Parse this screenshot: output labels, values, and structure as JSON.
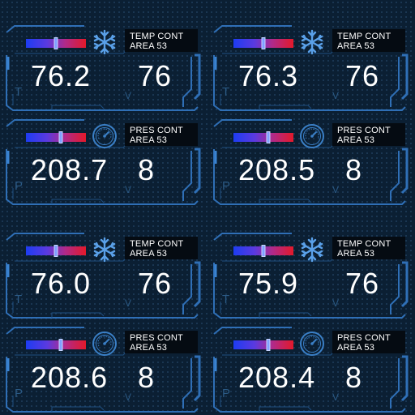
{
  "colors": {
    "background": "#0b1f33",
    "frame": "#2f6fb6",
    "bar_start": "#1d3cf2",
    "bar_end": "#e3192a",
    "label_bg": "#050b12",
    "text": "#ffffff",
    "symbol": "#2b5a85"
  },
  "groups": [
    {
      "panels": [
        {
          "icon": "snowflake-icon",
          "label_line1": "TEMP CONT",
          "label_line2": "AREA 53",
          "value": "76.2",
          "setpoint": "76",
          "symbol_left": "T",
          "symbol_right": "V",
          "slider_level": 0.5
        },
        {
          "icon": "snowflake-icon",
          "label_line1": "TEMP CONT",
          "label_line2": "AREA 53",
          "value": "76.3",
          "setpoint": "76",
          "symbol_left": "T",
          "symbol_right": "V",
          "slider_level": 0.5
        },
        {
          "icon": "gauge-icon",
          "label_line1": "PRES CONT",
          "label_line2": "AREA 53",
          "value": "208.7",
          "setpoint": "8",
          "symbol_left": "P",
          "symbol_right": "V",
          "slider_level": 0.58
        },
        {
          "icon": "gauge-icon",
          "label_line1": "PRES CONT",
          "label_line2": "AREA 53",
          "value": "208.5",
          "setpoint": "8",
          "symbol_left": "P",
          "symbol_right": "V",
          "slider_level": 0.58
        }
      ]
    },
    {
      "panels": [
        {
          "icon": "snowflake-icon",
          "label_line1": "TEMP CONT",
          "label_line2": "AREA 53",
          "value": "76.0",
          "setpoint": "76",
          "symbol_left": "T",
          "symbol_right": "V",
          "slider_level": 0.5
        },
        {
          "icon": "snowflake-icon",
          "label_line1": "TEMP CONT",
          "label_line2": "AREA 53",
          "value": "75.9",
          "setpoint": "76",
          "symbol_left": "T",
          "symbol_right": "V",
          "slider_level": 0.5
        },
        {
          "icon": "gauge-icon",
          "label_line1": "PRES CONT",
          "label_line2": "AREA 53",
          "value": "208.6",
          "setpoint": "8",
          "symbol_left": "P",
          "symbol_right": "V",
          "slider_level": 0.58
        },
        {
          "icon": "gauge-icon",
          "label_line1": "PRES CONT",
          "label_line2": "AREA 53",
          "value": "208.4",
          "setpoint": "8",
          "symbol_left": "P",
          "symbol_right": "V",
          "slider_level": 0.58
        }
      ]
    }
  ]
}
